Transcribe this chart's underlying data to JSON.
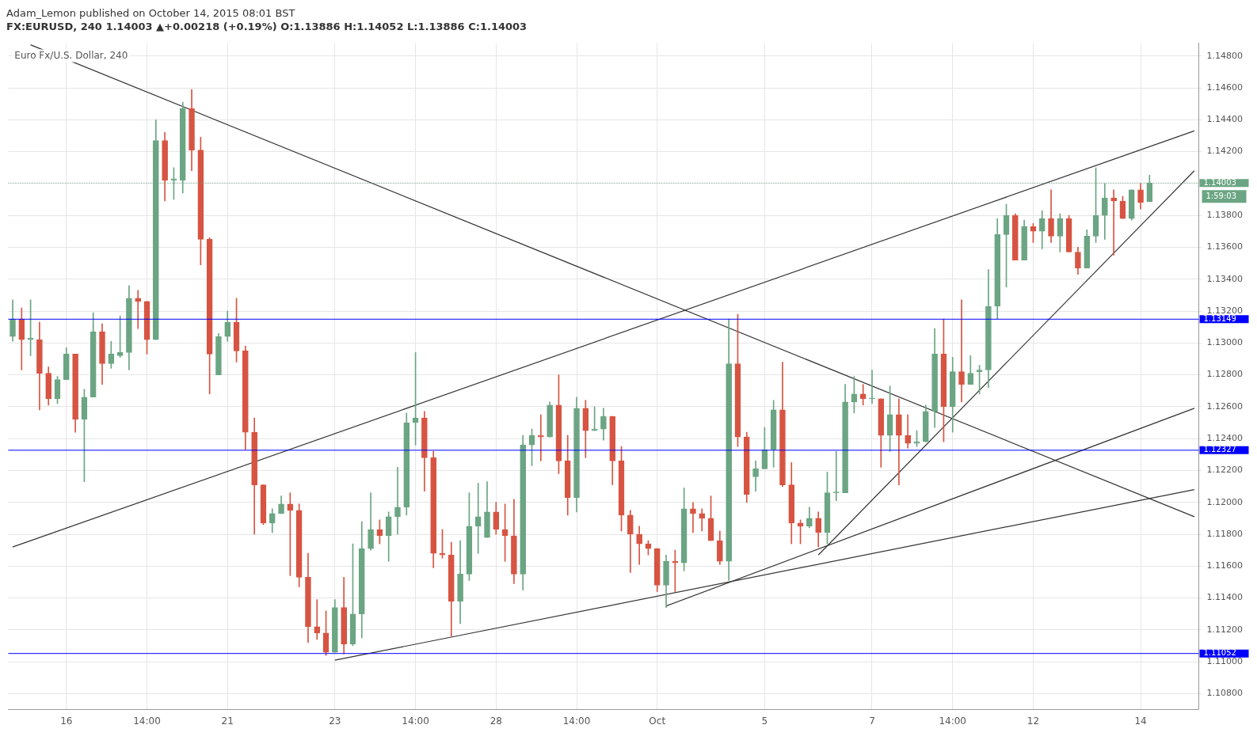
{
  "chart_data": {
    "type": "candlestick",
    "title": "FX:EURUSD, 240 1.14003 ▲+0.00218 (+0.19%) O:1.13886 H:1.14052 L:1.13886 C:1.14003",
    "subtitle": "Euro Fx/U.S. Dollar, 240",
    "annotations": [
      "Adam_Lemon published on October 14, 2015 08:01 BST",
      "1:59:03"
    ],
    "categories": [
      null,
      null,
      null,
      null,
      null,
      null,
      "16",
      null,
      null,
      null,
      null,
      null,
      null,
      null,
      null,
      "14:00",
      null,
      null,
      null,
      null,
      null,
      null,
      null,
      null,
      "21",
      null,
      null,
      null,
      null,
      null,
      null,
      null,
      null,
      null,
      null,
      null,
      "23",
      null,
      null,
      null,
      null,
      null,
      null,
      null,
      null,
      "14:00",
      null,
      null,
      null,
      null,
      null,
      null,
      null,
      null,
      "28",
      null,
      null,
      null,
      null,
      null,
      null,
      null,
      null,
      "14:00",
      null,
      null,
      null,
      null,
      null,
      null,
      null,
      null,
      "Oct",
      null,
      null,
      null,
      null,
      null,
      null,
      null,
      null,
      null,
      null,
      null,
      "5",
      null,
      null,
      null,
      null,
      null,
      null,
      null,
      null,
      null,
      null,
      null,
      "7",
      null,
      null,
      null,
      null,
      null,
      null,
      null,
      null,
      "14:00",
      null,
      null,
      null,
      null,
      null,
      null,
      null,
      null,
      "12",
      null,
      null,
      null,
      null,
      null,
      null,
      null,
      null,
      null,
      null,
      null,
      "14",
      null,
      null,
      null,
      null,
      null,
      null
    ],
    "ohlc": [
      [
        1.1304,
        1.1327,
        1.1301,
        1.1315
      ],
      [
        1.1315,
        1.1322,
        1.1283,
        1.1302
      ],
      [
        1.1302,
        1.1327,
        1.1292,
        1.1303
      ],
      [
        1.1302,
        1.1313,
        1.1258,
        1.1281
      ],
      [
        1.1281,
        1.1285,
        1.1261,
        1.1265
      ],
      [
        1.1265,
        1.1279,
        1.1262,
        1.1277
      ],
      [
        1.1277,
        1.1297,
        1.1277,
        1.1293
      ],
      [
        1.1293,
        1.1293,
        1.1244,
        1.1252
      ],
      [
        1.1252,
        1.1271,
        1.1213,
        1.1266
      ],
      [
        1.1266,
        1.1319,
        1.1266,
        1.1307
      ],
      [
        1.1307,
        1.1312,
        1.1274,
        1.1287
      ],
      [
        1.1287,
        1.1301,
        1.1284,
        1.1293
      ],
      [
        1.1292,
        1.1317,
        1.1291,
        1.1294
      ],
      [
        1.1294,
        1.1336,
        1.1283,
        1.1328
      ],
      [
        1.1328,
        1.1333,
        1.1309,
        1.1326
      ],
      [
        1.1326,
        1.1326,
        1.1293,
        1.1302
      ],
      [
        1.1302,
        1.144,
        1.1302,
        1.1427
      ],
      [
        1.1427,
        1.1432,
        1.1389,
        1.1402
      ],
      [
        1.1402,
        1.141,
        1.139,
        1.1403
      ],
      [
        1.1402,
        1.1451,
        1.1394,
        1.1447
      ],
      [
        1.1447,
        1.1459,
        1.1408,
        1.1421
      ],
      [
        1.1421,
        1.1429,
        1.1349,
        1.1365
      ],
      [
        1.1365,
        1.1366,
        1.1268,
        1.1293
      ],
      [
        1.128,
        1.1306,
        1.128,
        1.1304
      ],
      [
        1.1304,
        1.132,
        1.1301,
        1.1313
      ],
      [
        1.1313,
        1.1328,
        1.1288,
        1.1295
      ],
      [
        1.1295,
        1.1298,
        1.1233,
        1.1244
      ],
      [
        1.1244,
        1.1253,
        1.118,
        1.1211
      ],
      [
        1.1211,
        1.1211,
        1.1186,
        1.1187
      ],
      [
        1.1187,
        1.1196,
        1.1181,
        1.1193
      ],
      [
        1.1193,
        1.1204,
        1.1193,
        1.1199
      ],
      [
        1.1199,
        1.1206,
        1.1154,
        1.1195
      ],
      [
        1.1195,
        1.1199,
        1.1147,
        1.1153
      ],
      [
        1.1153,
        1.1168,
        1.1112,
        1.1122
      ],
      [
        1.1122,
        1.1139,
        1.1114,
        1.1118
      ],
      [
        1.1118,
        1.1132,
        1.1104,
        1.1106
      ],
      [
        1.1106,
        1.1139,
        1.1106,
        1.1134
      ],
      [
        1.1134,
        1.1153,
        1.1105,
        1.1111
      ],
      [
        1.1111,
        1.1174,
        1.111,
        1.113
      ],
      [
        1.113,
        1.1188,
        1.1115,
        1.1171
      ],
      [
        1.1171,
        1.1206,
        1.117,
        1.1183
      ],
      [
        1.1183,
        1.1189,
        1.1174,
        1.1179
      ],
      [
        1.1179,
        1.1194,
        1.1163,
        1.1191
      ],
      [
        1.1191,
        1.1222,
        1.118,
        1.1197
      ],
      [
        1.1197,
        1.1256,
        1.1192,
        1.125
      ],
      [
        1.125,
        1.1294,
        1.1236,
        1.1253
      ],
      [
        1.1253,
        1.1257,
        1.1207,
        1.1228
      ],
      [
        1.1228,
        1.1232,
        1.1159,
        1.1168
      ],
      [
        1.1168,
        1.1183,
        1.1165,
        1.1167
      ],
      [
        1.1167,
        1.1175,
        1.1116,
        1.1138
      ],
      [
        1.1138,
        1.1176,
        1.1124,
        1.1155
      ],
      [
        1.1155,
        1.1206,
        1.1151,
        1.1185
      ],
      [
        1.1185,
        1.1212,
        1.1168,
        1.1191
      ],
      [
        1.1178,
        1.1213,
        1.1178,
        1.1194
      ],
      [
        1.1194,
        1.12,
        1.118,
        1.1183
      ],
      [
        1.1183,
        1.1199,
        1.1163,
        1.1179
      ],
      [
        1.1179,
        1.1202,
        1.1149,
        1.1155
      ],
      [
        1.1155,
        1.1242,
        1.1145,
        1.1236
      ],
      [
        1.1236,
        1.1246,
        1.1223,
        1.1242
      ],
      [
        1.1242,
        1.1255,
        1.1226,
        1.1241
      ],
      [
        1.1241,
        1.1263,
        1.1241,
        1.1261
      ],
      [
        1.1261,
        1.128,
        1.1218,
        1.1226
      ],
      [
        1.1226,
        1.1242,
        1.1192,
        1.1203
      ],
      [
        1.1203,
        1.1266,
        1.1194,
        1.1259
      ],
      [
        1.1259,
        1.1264,
        1.1228,
        1.1245
      ],
      [
        1.1245,
        1.126,
        1.1245,
        1.1246
      ],
      [
        1.1246,
        1.1259,
        1.1239,
        1.1254
      ],
      [
        1.1254,
        1.1254,
        1.1211,
        1.1226
      ],
      [
        1.1226,
        1.1235,
        1.1182,
        1.1192
      ],
      [
        1.1192,
        1.1195,
        1.1156,
        1.118
      ],
      [
        1.118,
        1.1185,
        1.1161,
        1.1174
      ],
      [
        1.1174,
        1.1176,
        1.1167,
        1.1171
      ],
      [
        1.1171,
        1.1171,
        1.1144,
        1.1148
      ],
      [
        1.1148,
        1.1167,
        1.1134,
        1.1163
      ],
      [
        1.1163,
        1.117,
        1.1144,
        1.1162
      ],
      [
        1.1162,
        1.1209,
        1.1157,
        1.1196
      ],
      [
        1.1196,
        1.12,
        1.1181,
        1.1193
      ],
      [
        1.1193,
        1.1196,
        1.1182,
        1.119
      ],
      [
        1.119,
        1.1204,
        1.1176,
        1.1176
      ],
      [
        1.1176,
        1.1182,
        1.1161,
        1.1163
      ],
      [
        1.1163,
        1.1315,
        1.1151,
        1.1287
      ],
      [
        1.1287,
        1.1318,
        1.1235,
        1.1241
      ],
      [
        1.1241,
        1.1244,
        1.12,
        1.1205
      ],
      [
        1.1216,
        1.1226,
        1.1207,
        1.1221
      ],
      [
        1.1221,
        1.1247,
        1.1221,
        1.1233
      ],
      [
        1.1233,
        1.1264,
        1.1222,
        1.1258
      ],
      [
        1.1258,
        1.1288,
        1.121,
        1.1211
      ],
      [
        1.1211,
        1.1225,
        1.1174,
        1.1187
      ],
      [
        1.1187,
        1.1189,
        1.1174,
        1.1185
      ],
      [
        1.1185,
        1.1197,
        1.1184,
        1.119
      ],
      [
        1.119,
        1.1194,
        1.1172,
        1.1181
      ],
      [
        1.1181,
        1.1219,
        1.1174,
        1.1206
      ],
      [
        1.1206,
        1.1232,
        1.1201,
        1.1206
      ],
      [
        1.1206,
        1.1274,
        1.1206,
        1.1263
      ],
      [
        1.1263,
        1.1279,
        1.1256,
        1.1268
      ],
      [
        1.1268,
        1.1274,
        1.1261,
        1.1265
      ],
      [
        1.1265,
        1.1283,
        1.1262,
        1.1265
      ],
      [
        1.1265,
        1.1265,
        1.1222,
        1.1242
      ],
      [
        1.1242,
        1.1273,
        1.1232,
        1.1255
      ],
      [
        1.1255,
        1.1265,
        1.1211,
        1.1242
      ],
      [
        1.1242,
        1.1255,
        1.1234,
        1.1237
      ],
      [
        1.1237,
        1.1245,
        1.1235,
        1.1238
      ],
      [
        1.1238,
        1.1261,
        1.1238,
        1.1257
      ],
      [
        1.1257,
        1.1309,
        1.1247,
        1.1293
      ],
      [
        1.1293,
        1.1315,
        1.1238,
        1.126
      ],
      [
        1.126,
        1.1291,
        1.1244,
        1.1282
      ],
      [
        1.1282,
        1.1327,
        1.1263,
        1.1274
      ],
      [
        1.1274,
        1.1292,
        1.1274,
        1.1281
      ],
      [
        1.1282,
        1.1286,
        1.1268,
        1.1283
      ],
      [
        1.1283,
        1.1346,
        1.1272,
        1.1323
      ],
      [
        1.1323,
        1.1378,
        1.1315,
        1.1368
      ],
      [
        1.1368,
        1.1387,
        1.1335,
        1.138
      ],
      [
        1.138,
        1.1381,
        1.1352,
        1.1352
      ],
      [
        1.1352,
        1.1377,
        1.1352,
        1.1373
      ],
      [
        1.1373,
        1.1375,
        1.1363,
        1.137
      ],
      [
        1.137,
        1.1383,
        1.1359,
        1.1378
      ],
      [
        1.1378,
        1.1396,
        1.1363,
        1.1367
      ],
      [
        1.1367,
        1.1381,
        1.1357,
        1.1378
      ],
      [
        1.1378,
        1.138,
        1.1357,
        1.1357
      ],
      [
        1.1357,
        1.136,
        1.1343,
        1.1347
      ],
      [
        1.1347,
        1.1371,
        1.1347,
        1.1367
      ],
      [
        1.1367,
        1.141,
        1.1363,
        1.138
      ],
      [
        1.138,
        1.14,
        1.1365,
        1.1391
      ],
      [
        1.1391,
        1.1396,
        1.1355,
        1.1389
      ],
      [
        1.1389,
        1.1392,
        1.1378,
        1.1378
      ],
      [
        1.1378,
        1.1396,
        1.1377,
        1.1396
      ],
      [
        1.1396,
        1.14,
        1.1384,
        1.1388
      ],
      [
        1.13886,
        1.14052,
        1.13886,
        1.14003
      ],
      null,
      null,
      null,
      null,
      null
    ],
    "colors": [
      "#6ba583",
      "#d75442",
      "#6ba583",
      "#d75442",
      "#d75442",
      "#6ba583",
      "#6ba583",
      "#d75442",
      "#6ba583",
      "#6ba583",
      "#d75442",
      "#6ba583",
      "#6ba583",
      "#6ba583",
      "#d75442",
      "#d75442",
      "#6ba583",
      "#d75442",
      "#6ba583",
      "#6ba583",
      "#d75442",
      "#d75442",
      "#d75442",
      "#6ba583",
      "#6ba583",
      "#d75442",
      "#d75442",
      "#d75442",
      "#d75442",
      "#6ba583",
      "#6ba583",
      "#d75442",
      "#d75442",
      "#d75442",
      "#d75442",
      "#d75442",
      "#6ba583",
      "#d75442",
      "#6ba583",
      "#6ba583",
      "#6ba583",
      "#d75442",
      "#6ba583",
      "#6ba583",
      "#6ba583",
      "#6ba583",
      "#d75442",
      "#d75442",
      "#d75442",
      "#d75442",
      "#6ba583",
      "#6ba583",
      "#6ba583",
      "#6ba583",
      "#d75442",
      "#d75442",
      "#d75442",
      "#6ba583",
      "#6ba583",
      "#d75442",
      "#6ba583",
      "#d75442",
      "#d75442",
      "#6ba583",
      "#d75442",
      "#6ba583",
      "#6ba583",
      "#d75442",
      "#d75442",
      "#d75442",
      "#d75442",
      "#d75442",
      "#d75442",
      "#6ba583",
      "#d75442",
      "#6ba583",
      "#d75442",
      "#d75442",
      "#d75442",
      "#d75442",
      "#6ba583",
      "#d75442",
      "#d75442",
      "#6ba583",
      "#6ba583",
      "#6ba583",
      "#d75442",
      "#d75442",
      "#d75442",
      "#6ba583",
      "#d75442",
      "#6ba583",
      "#6ba583",
      "#6ba583",
      "#6ba583",
      "#d75442",
      "#6ba583",
      "#d75442",
      "#6ba583",
      "#d75442",
      "#d75442",
      "#6ba583",
      "#6ba583",
      "#6ba583",
      "#d75442",
      "#6ba583",
      "#d75442",
      "#6ba583",
      "#6ba583",
      "#6ba583",
      "#6ba583",
      "#6ba583",
      "#d75442",
      "#6ba583",
      "#d75442",
      "#6ba583",
      "#d75442",
      "#6ba583",
      "#d75442",
      "#d75442",
      "#6ba583",
      "#6ba583",
      "#6ba583",
      "#d75442",
      "#d75442",
      "#6ba583",
      "#d75442",
      "#6ba583",
      null,
      null,
      null,
      null,
      null
    ],
    "series": [
      {
        "type": "line",
        "color": "#333333",
        "values": [
          null,
          null,
          1.1487,
          null,
          null,
          null,
          null,
          null,
          null,
          null,
          null,
          null,
          null,
          null,
          null,
          null,
          null,
          null,
          null,
          null,
          null,
          null,
          null,
          null,
          null,
          null,
          null,
          null,
          null,
          null,
          null,
          null,
          null,
          null,
          null,
          null,
          null,
          null,
          null,
          null,
          null,
          null,
          null,
          null,
          null,
          null,
          null,
          null,
          null,
          null,
          null,
          null,
          null,
          null,
          null,
          null,
          null,
          null,
          null,
          null,
          null,
          null,
          null,
          null,
          null,
          null,
          null,
          null,
          null,
          null,
          null,
          null,
          null,
          null,
          null,
          null,
          null,
          null,
          null,
          null,
          null,
          null,
          null,
          null,
          null,
          null,
          null,
          null,
          null,
          null,
          null,
          null,
          null,
          null,
          null,
          null,
          null,
          null,
          null,
          null,
          null,
          null,
          null,
          null,
          null,
          null,
          null,
          null,
          null,
          null,
          null,
          null,
          null,
          null,
          null,
          null,
          null,
          null,
          null,
          null,
          null,
          null,
          null,
          null,
          null,
          null,
          null,
          null,
          null,
          null,
          null,
          null,
          1.1191
        ]
      },
      {
        "type": "line",
        "color": "#333333",
        "values": [
          1.1172,
          null,
          null,
          null,
          null,
          null,
          null,
          null,
          null,
          null,
          null,
          null,
          null,
          null,
          null,
          null,
          null,
          null,
          null,
          null,
          null,
          null,
          null,
          null,
          null,
          null,
          null,
          null,
          null,
          null,
          null,
          null,
          null,
          null,
          null,
          null,
          null,
          null,
          null,
          null,
          null,
          null,
          null,
          null,
          null,
          null,
          null,
          null,
          null,
          null,
          null,
          null,
          null,
          null,
          null,
          null,
          null,
          null,
          null,
          null,
          null,
          null,
          null,
          null,
          null,
          null,
          null,
          null,
          null,
          null,
          null,
          null,
          null,
          null,
          null,
          null,
          null,
          null,
          null,
          null,
          null,
          null,
          null,
          null,
          null,
          null,
          null,
          null,
          null,
          null,
          null,
          null,
          null,
          null,
          null,
          null,
          null,
          null,
          null,
          null,
          null,
          null,
          null,
          null,
          null,
          null,
          null,
          null,
          null,
          null,
          null,
          null,
          null,
          null,
          null,
          null,
          null,
          null,
          null,
          null,
          null,
          null,
          null,
          null,
          null,
          null,
          null,
          null,
          null,
          null,
          null,
          null,
          1.1433
        ]
      },
      {
        "type": "line",
        "color": "#333333",
        "values": [
          null,
          null,
          null,
          null,
          null,
          null,
          null,
          null,
          null,
          null,
          null,
          null,
          null,
          null,
          null,
          null,
          null,
          null,
          null,
          null,
          null,
          null,
          null,
          null,
          null,
          null,
          null,
          null,
          null,
          null,
          null,
          null,
          null,
          null,
          null,
          null,
          1.1101,
          null,
          null,
          null,
          null,
          null,
          null,
          null,
          null,
          null,
          null,
          null,
          null,
          null,
          null,
          null,
          null,
          null,
          null,
          null,
          null,
          null,
          null,
          null,
          null,
          null,
          null,
          null,
          null,
          null,
          null,
          null,
          null,
          null,
          null,
          null,
          null,
          null,
          null,
          null,
          null,
          null,
          null,
          null,
          null,
          null,
          null,
          null,
          null,
          null,
          null,
          null,
          null,
          null,
          null,
          null,
          null,
          null,
          null,
          null,
          null,
          null,
          null,
          null,
          null,
          null,
          null,
          null,
          null,
          null,
          null,
          null,
          null,
          null,
          null,
          null,
          null,
          null,
          null,
          null,
          null,
          null,
          null,
          null,
          null,
          null,
          null,
          null,
          null,
          null,
          null,
          null,
          null,
          null,
          null,
          null,
          1.1208
        ]
      },
      {
        "type": "line",
        "color": "#333333",
        "values": [
          null,
          null,
          null,
          null,
          null,
          null,
          null,
          null,
          null,
          null,
          null,
          null,
          null,
          null,
          null,
          null,
          null,
          null,
          null,
          null,
          null,
          null,
          null,
          null,
          null,
          null,
          null,
          null,
          null,
          null,
          null,
          null,
          null,
          null,
          null,
          null,
          null,
          null,
          null,
          null,
          null,
          null,
          null,
          null,
          null,
          null,
          null,
          null,
          null,
          null,
          null,
          null,
          null,
          null,
          null,
          null,
          null,
          null,
          null,
          null,
          null,
          null,
          null,
          null,
          null,
          null,
          null,
          null,
          null,
          null,
          null,
          null,
          null,
          1.1135,
          null,
          null,
          null,
          null,
          null,
          null,
          null,
          null,
          null,
          null,
          null,
          null,
          null,
          null,
          null,
          null,
          null,
          null,
          null,
          null,
          null,
          null,
          null,
          null,
          null,
          null,
          null,
          null,
          null,
          null,
          null,
          null,
          null,
          null,
          null,
          null,
          null,
          null,
          null,
          null,
          null,
          null,
          null,
          null,
          null,
          null,
          null,
          null,
          null,
          null,
          null,
          null,
          null,
          null,
          null,
          null,
          null,
          null,
          1.1259
        ]
      },
      {
        "type": "line",
        "color": "#333333",
        "values": [
          null,
          null,
          null,
          null,
          null,
          null,
          null,
          null,
          null,
          null,
          null,
          null,
          null,
          null,
          null,
          null,
          null,
          null,
          null,
          null,
          null,
          null,
          null,
          null,
          null,
          null,
          null,
          null,
          null,
          null,
          null,
          null,
          null,
          null,
          null,
          null,
          null,
          null,
          null,
          null,
          null,
          null,
          null,
          null,
          null,
          null,
          null,
          null,
          null,
          null,
          null,
          null,
          null,
          null,
          null,
          null,
          null,
          null,
          null,
          null,
          null,
          null,
          null,
          null,
          null,
          null,
          null,
          null,
          null,
          null,
          null,
          null,
          null,
          null,
          null,
          null,
          null,
          null,
          null,
          null,
          null,
          null,
          null,
          null,
          null,
          null,
          null,
          null,
          null,
          null,
          1.1167,
          null,
          null,
          null,
          null,
          null,
          null,
          null,
          null,
          null,
          null,
          null,
          null,
          null,
          null,
          null,
          null,
          null,
          null,
          null,
          null,
          null,
          null,
          null,
          null,
          null,
          null,
          null,
          null,
          null,
          null,
          null,
          null,
          null,
          null,
          null,
          null,
          null,
          null,
          null,
          null,
          null,
          1.1408
        ]
      }
    ],
    "ref_lines": [
      {
        "axis": "y",
        "value": 1.13149,
        "label": "1.13149",
        "color": "#0000ff"
      },
      {
        "axis": "y",
        "value": 1.12327,
        "label": "1.12327",
        "color": "#0000ff"
      },
      {
        "axis": "y",
        "value": 1.11052,
        "label": "1.11052",
        "color": "#0000ff"
      },
      {
        "axis": "y",
        "value": 1.14003,
        "label": "1.14003",
        "color": "#6ba583",
        "line_style": "dotted"
      }
    ],
    "ylim": [
      1.107,
      1.1488
    ],
    "yticks": [
      {
        "value": 1.108,
        "label": "1.10800"
      },
      {
        "value": 1.11,
        "label": "1.11000"
      },
      {
        "value": 1.112,
        "label": "1.11200"
      },
      {
        "value": 1.114,
        "label": "1.11400"
      },
      {
        "value": 1.116,
        "label": "1.11600"
      },
      {
        "value": 1.118,
        "label": "1.11800"
      },
      {
        "value": 1.12,
        "label": "1.12000"
      },
      {
        "value": 1.122,
        "label": "1.12200"
      },
      {
        "value": 1.124,
        "label": "1.12400"
      },
      {
        "value": 1.126,
        "label": "1.12600"
      },
      {
        "value": 1.128,
        "label": "1.12800"
      },
      {
        "value": 1.13,
        "label": "1.13000"
      },
      {
        "value": 1.132,
        "label": "1.13200"
      },
      {
        "value": 1.134,
        "label": "1.13400"
      },
      {
        "value": 1.136,
        "label": "1.13600"
      },
      {
        "value": 1.138,
        "label": "1.13800"
      },
      {
        "value": 1.14,
        "label": null
      },
      {
        "value": 1.142,
        "label": "1.14200"
      },
      {
        "value": 1.144,
        "label": "1.14400"
      },
      {
        "value": 1.146,
        "label": "1.14600"
      },
      {
        "value": 1.148,
        "label": "1.14800"
      }
    ],
    "grid": true,
    "legend": false
  }
}
